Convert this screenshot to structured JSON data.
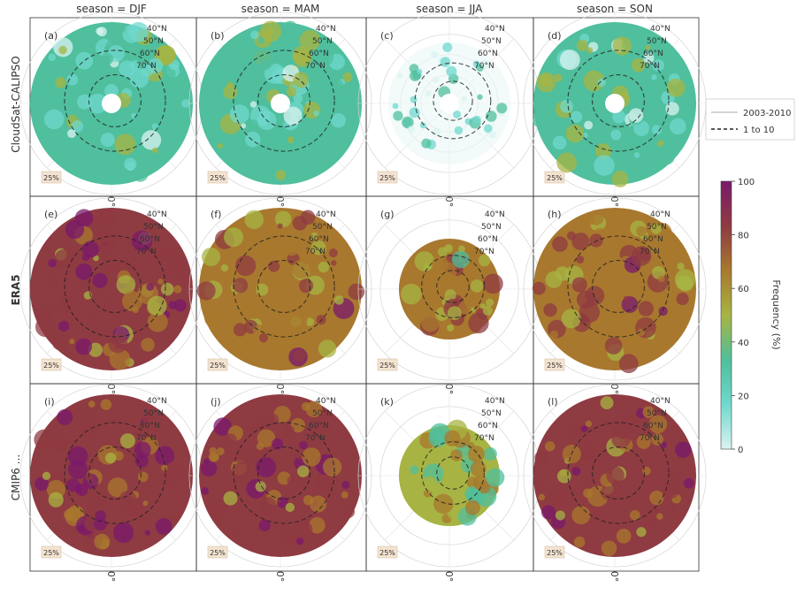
{
  "figure": {
    "column_titles": [
      "season = DJF",
      "season = MAM",
      "season = JJA",
      "season = SON"
    ],
    "row_labels": [
      "CloudSat-CALIPSO",
      "ERA5",
      "CMIP6 ..."
    ],
    "panel_letters": [
      "(a)",
      "(b)",
      "(c)",
      "(d)",
      "(e)",
      "(f)",
      "(g)",
      "(h)",
      "(i)",
      "(j)",
      "(k)",
      "(l)"
    ],
    "panel_badges": [
      "25%",
      "25%",
      "25%",
      "25%",
      "25%",
      "25%",
      "25%",
      "25%",
      "25%",
      "25%",
      "25%",
      "25%"
    ],
    "lat_labels": [
      "40°N",
      "50°N",
      "60°N",
      "70°N"
    ],
    "bottom_tick": "0°",
    "legend": {
      "items": [
        {
          "label": "2003-2010",
          "style": "solid",
          "color": "#bbbbbb"
        },
        {
          "label": "1 to 10",
          "style": "dashed",
          "color": "#222222"
        }
      ]
    },
    "colorbar": {
      "label": "Frequency (%)",
      "ticks": [
        "0",
        "20",
        "40",
        "60",
        "80",
        "100"
      ],
      "min": 0,
      "max": 100,
      "colors": [
        "#d9f3f1",
        "#6fd8cd",
        "#4fbf9d",
        "#a7b443",
        "#a8782e",
        "#8f3b42",
        "#7a1a6b"
      ]
    }
  },
  "chart_data": {
    "type": "heatmap",
    "projection": "north polar stereographic",
    "rows": [
      "CloudSat-CALIPSO",
      "ERA5",
      "CMIP6 ..."
    ],
    "columns": [
      "season = DJF",
      "season = MAM",
      "season = JJA",
      "season = SON"
    ],
    "panels": [
      {
        "panel": "(a)",
        "row": "CloudSat-CALIPSO",
        "season": "DJF",
        "coverage": "full",
        "typical_frequency": 30
      },
      {
        "panel": "(b)",
        "row": "CloudSat-CALIPSO",
        "season": "MAM",
        "coverage": "full",
        "typical_frequency": 30
      },
      {
        "panel": "(c)",
        "row": "CloudSat-CALIPSO",
        "season": "JJA",
        "coverage": "sparse",
        "typical_frequency": 15
      },
      {
        "panel": "(d)",
        "row": "CloudSat-CALIPSO",
        "season": "SON",
        "coverage": "full",
        "typical_frequency": 30
      },
      {
        "panel": "(e)",
        "row": "ERA5",
        "season": "DJF",
        "coverage": "full",
        "typical_frequency": 75
      },
      {
        "panel": "(f)",
        "row": "ERA5",
        "season": "MAM",
        "coverage": "full",
        "typical_frequency": 70
      },
      {
        "panel": "(g)",
        "row": "ERA5",
        "season": "JJA",
        "coverage": "partial",
        "typical_frequency": 65
      },
      {
        "panel": "(h)",
        "row": "ERA5",
        "season": "SON",
        "coverage": "full",
        "typical_frequency": 70
      },
      {
        "panel": "(i)",
        "row": "CMIP6 ...",
        "season": "DJF",
        "coverage": "full",
        "typical_frequency": 80
      },
      {
        "panel": "(j)",
        "row": "CMIP6 ...",
        "season": "MAM",
        "coverage": "full",
        "typical_frequency": 80
      },
      {
        "panel": "(k)",
        "row": "CMIP6 ...",
        "season": "JJA",
        "coverage": "partial",
        "typical_frequency": 50
      },
      {
        "panel": "(l)",
        "row": "CMIP6 ...",
        "season": "SON",
        "coverage": "full",
        "typical_frequency": 78
      }
    ],
    "colorbar_range": [
      0,
      100
    ]
  }
}
